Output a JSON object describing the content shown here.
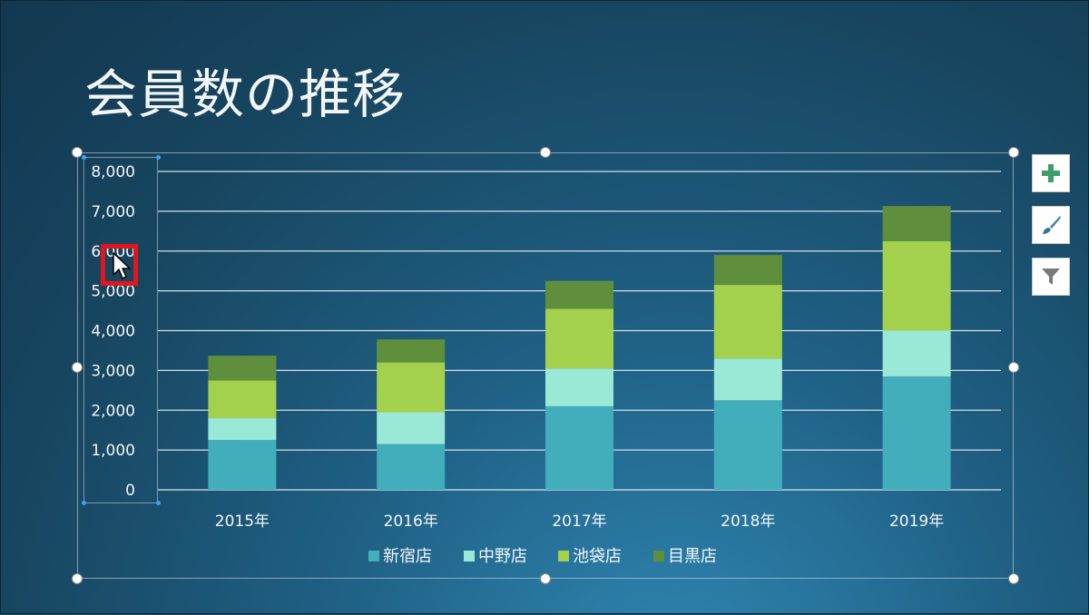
{
  "slide": {
    "title": "会員数の推移"
  },
  "chart_data": {
    "type": "bar",
    "stacked": true,
    "categories": [
      "2015年",
      "2016年",
      "2017年",
      "2018年",
      "2019年"
    ],
    "series": [
      {
        "name": "新宿店",
        "color": "#42aebc",
        "values": [
          1250,
          1150,
          2100,
          2250,
          2850
        ]
      },
      {
        "name": "中野店",
        "color": "#9ae8d6",
        "values": [
          550,
          800,
          950,
          1050,
          1150
        ]
      },
      {
        "name": "池袋店",
        "color": "#a3d14d",
        "values": [
          950,
          1250,
          1500,
          1850,
          2250
        ]
      },
      {
        "name": "目黒店",
        "color": "#5f8f3c",
        "values": [
          620,
          580,
          700,
          750,
          880
        ]
      }
    ],
    "y_ticks": [
      "0",
      "1,000",
      "2,000",
      "3,000",
      "4,000",
      "5,000",
      "6,000",
      "7,000",
      "8,000"
    ],
    "ylim": [
      0,
      8000
    ],
    "grid": true,
    "legend": "bottom"
  },
  "side_buttons": [
    {
      "icon": "plus-icon"
    },
    {
      "icon": "brush-icon"
    },
    {
      "icon": "filter-icon"
    }
  ]
}
